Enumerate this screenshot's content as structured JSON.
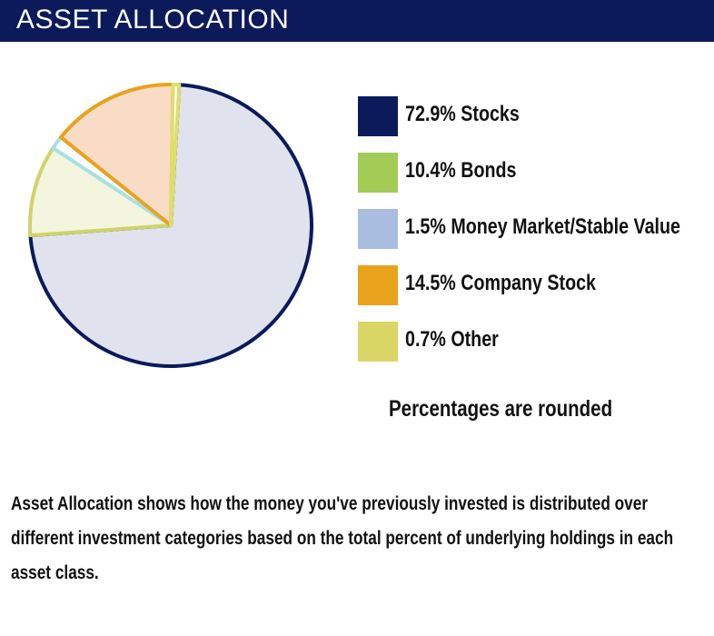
{
  "header": {
    "title": "ASSET ALLOCATION"
  },
  "chart_data": {
    "type": "pie",
    "slices": [
      {
        "label": "72.9% Stocks",
        "value": 72.9,
        "color": "#0c1a5b",
        "fill": "#e0e3ee",
        "stroke": "#0c1a5b"
      },
      {
        "label": "10.4% Bonds",
        "value": 10.4,
        "color": "#a3cc57",
        "fill": "#f3f5df",
        "stroke": "#cfd36a"
      },
      {
        "label": "1.5% Money Market/Stable Value",
        "value": 1.5,
        "color": "#a9bde0",
        "fill": "#ffffff",
        "stroke": "#a9dfe6"
      },
      {
        "label": "14.5% Company Stock",
        "value": 14.5,
        "color": "#e9a21c",
        "fill": "#f8dcc6",
        "stroke": "#e9a21c"
      },
      {
        "label": "0.7% Other",
        "value": 0.7,
        "color": "#d9d666",
        "fill": "#ffffff",
        "stroke": "#dede6a"
      }
    ],
    "note": "Percentages are rounded"
  },
  "description": "Asset Allocation shows how the money you've previously invested is distributed over different investment categories based on the total percent of underlying holdings in each asset class."
}
